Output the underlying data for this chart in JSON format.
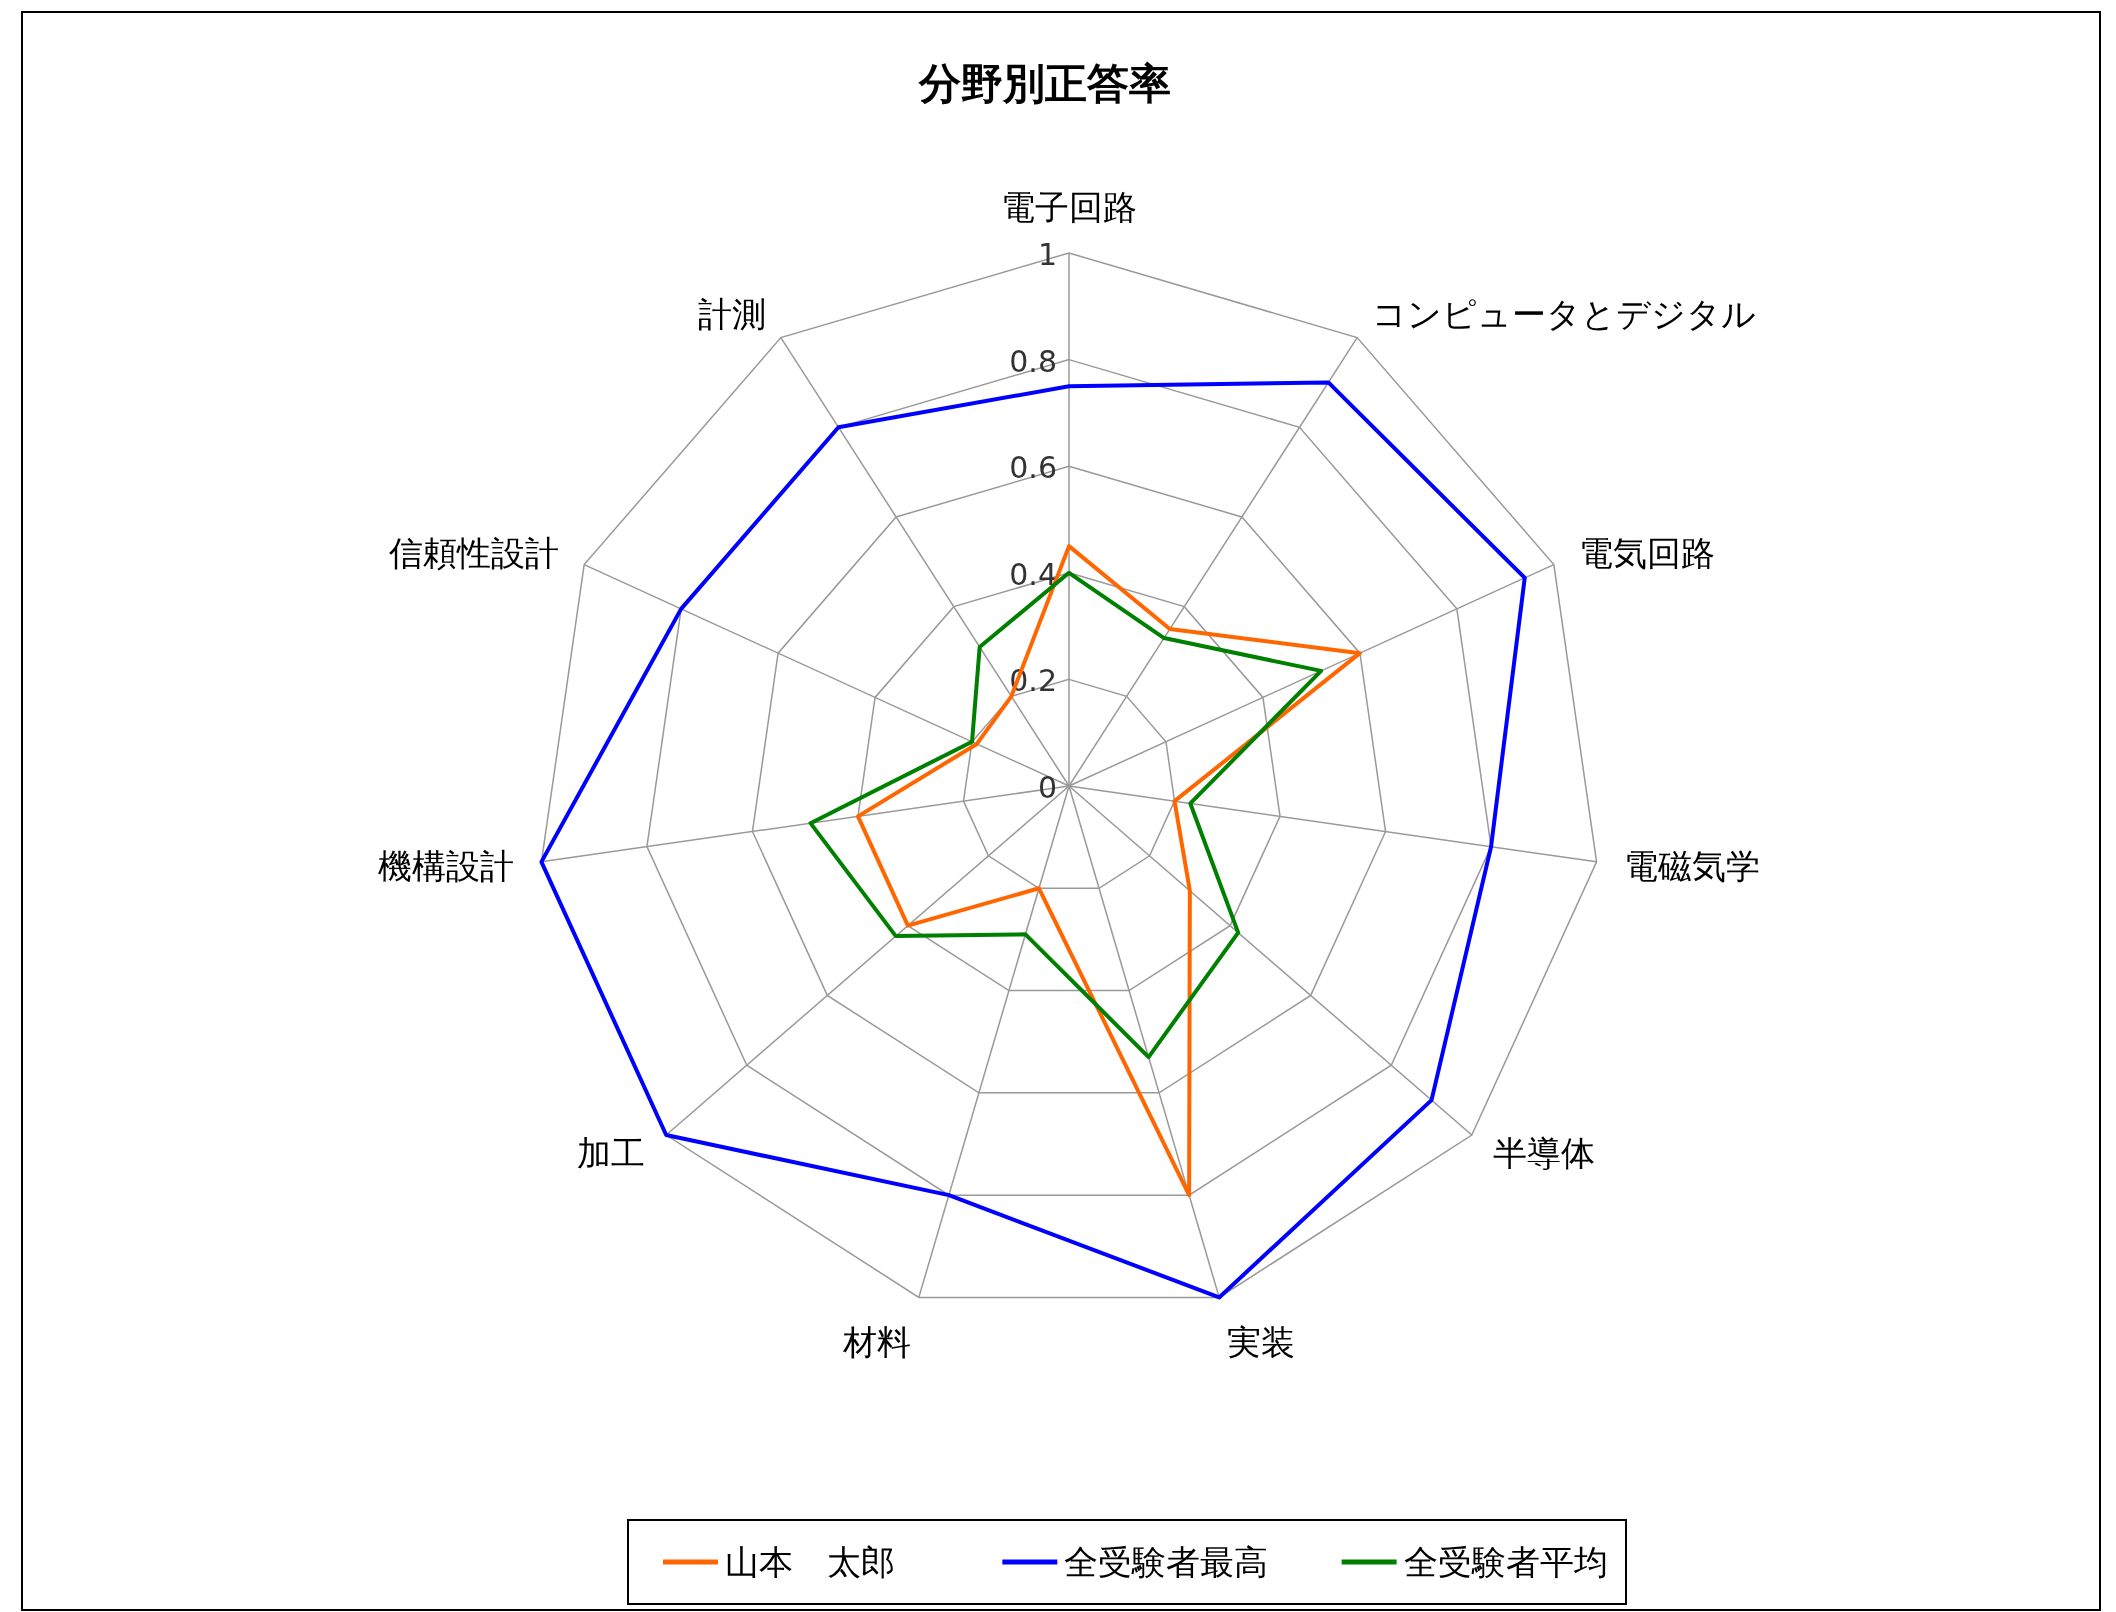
{
  "chart_data": {
    "type": "radar",
    "title": "分野別正答率",
    "categories": [
      "電子回路",
      "コンピュータとデジタル",
      "電気回路",
      "電磁気学",
      "半導体",
      "実装",
      "材料",
      "加工",
      "機構設計",
      "信頼性設計",
      "計測"
    ],
    "series": [
      {
        "name": "山本　太郎",
        "color": "#ff6600",
        "values": [
          0.45,
          0.35,
          0.6,
          0.2,
          0.3,
          0.8,
          0.2,
          0.4,
          0.4,
          0.19,
          0.2
        ]
      },
      {
        "name": "全受験者最高",
        "color": "#0000ff",
        "values": [
          0.75,
          0.9,
          0.94,
          0.8,
          0.9,
          1.0,
          0.8,
          1.0,
          1.0,
          0.8,
          0.8
        ]
      },
      {
        "name": "全受験者平均",
        "color": "#008000",
        "values": [
          0.4,
          0.33,
          0.52,
          0.23,
          0.42,
          0.53,
          0.29,
          0.43,
          0.49,
          0.2,
          0.31
        ]
      }
    ],
    "ylim": [
      0,
      1
    ],
    "yticks": [
      0,
      0.2,
      0.4,
      0.6,
      0.8,
      1
    ],
    "grid": true,
    "legend": "bottom"
  }
}
